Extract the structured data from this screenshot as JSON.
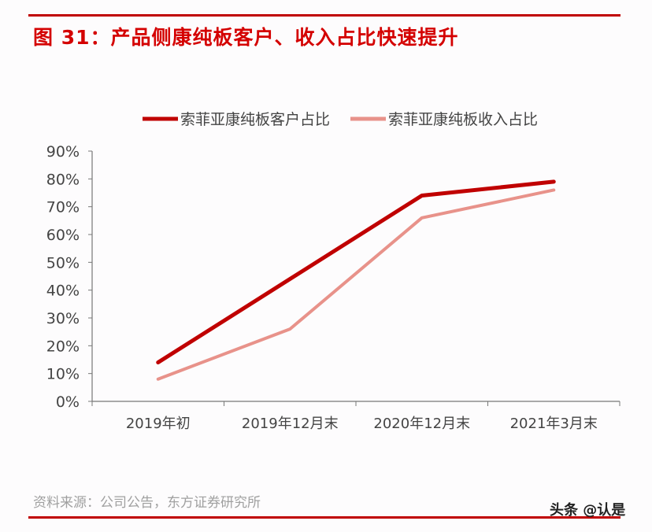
{
  "title": "图 31：产品侧康纯板客户、收入占比快速提升",
  "source": "资料来源：公司公告，东方证券研究所",
  "watermark": "头条 @认是",
  "chart_data": {
    "type": "line",
    "title": "图 31：产品侧康纯板客户、收入占比快速提升",
    "categories": [
      "2019年初",
      "2019年12月末",
      "2020年12月末",
      "2021年3月末"
    ],
    "series": [
      {
        "name": "索菲亚康纯板客户占比",
        "values": [
          14,
          44,
          74,
          79
        ],
        "color": "#c00000"
      },
      {
        "name": "索菲亚康纯板收入占比",
        "values": [
          8,
          26,
          66,
          76
        ],
        "color": "#e8928a"
      }
    ],
    "ylim": [
      0,
      90
    ],
    "yticks": [
      "0%",
      "10%",
      "20%",
      "30%",
      "40%",
      "50%",
      "60%",
      "70%",
      "80%",
      "90%"
    ],
    "unit": "%",
    "grid": false,
    "legend": "top-center",
    "xlabel": "",
    "ylabel": ""
  }
}
